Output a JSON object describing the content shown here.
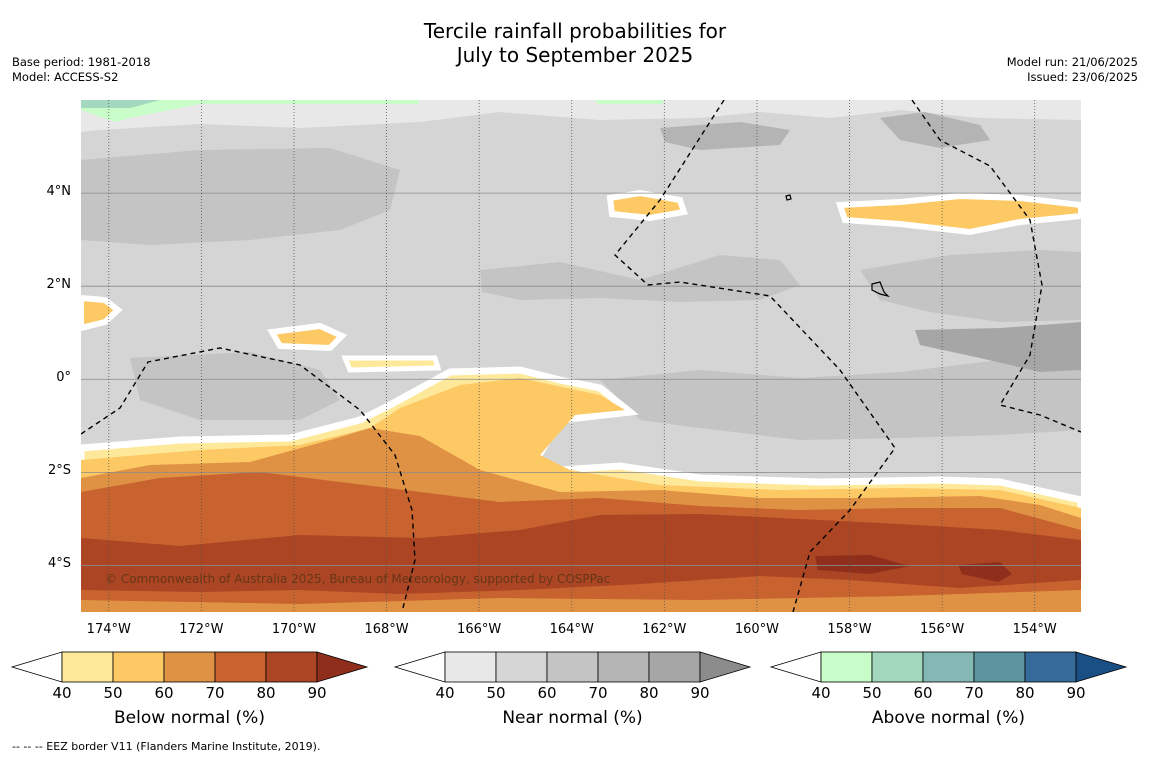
{
  "title_line1": "Tercile rainfall probabilities for",
  "title_line2": "July to September 2025",
  "meta_left": {
    "base_period": "Base period: 1981-2018",
    "model": "Model: ACCESS-S2"
  },
  "meta_right": {
    "model_run": "Model run: 21/06/2025",
    "issued": "Issued: 23/06/2025"
  },
  "copyright": "© Commonwealth of Australia 2025, Bureau of Meteorology, supported by COSPPac",
  "footer": "--  --  -- EEZ border V11 (Flanders Marine Institute, 2019).",
  "map": {
    "lon_min": -174.6,
    "lon_max": -153.0,
    "lat_min": -5.0,
    "lat_max": 6.0,
    "lat_ticks": [
      {
        "value": 4,
        "label": "4°N"
      },
      {
        "value": 2,
        "label": "2°N"
      },
      {
        "value": 0,
        "label": "0°"
      },
      {
        "value": -2,
        "label": "2°S"
      },
      {
        "value": -4,
        "label": "4°S"
      }
    ],
    "lon_ticks": [
      {
        "value": -174,
        "label": "174°W"
      },
      {
        "value": -172,
        "label": "172°W"
      },
      {
        "value": -170,
        "label": "170°W"
      },
      {
        "value": -168,
        "label": "168°W"
      },
      {
        "value": -166,
        "label": "166°W"
      },
      {
        "value": -164,
        "label": "164°W"
      },
      {
        "value": -162,
        "label": "162°W"
      },
      {
        "value": -160,
        "label": "160°W"
      },
      {
        "value": -158,
        "label": "158°W"
      },
      {
        "value": -156,
        "label": "156°W"
      },
      {
        "value": -154,
        "label": "154°W"
      }
    ],
    "background_color": "#d5d5d5"
  },
  "colorbars": [
    {
      "title": "Below normal (%)",
      "ticks": [
        "40",
        "50",
        "60",
        "70",
        "80",
        "90"
      ],
      "colors": [
        "#fee99b",
        "#fdc965",
        "#e09244",
        "#c8622e",
        "#ab4524"
      ],
      "over_color": "#8f2e1b"
    },
    {
      "title": "Near normal (%)",
      "ticks": [
        "40",
        "50",
        "60",
        "70",
        "80",
        "90"
      ],
      "colors": [
        "#e8e8e8",
        "#d5d5d5",
        "#c4c4c4",
        "#b4b4b4",
        "#a6a6a6"
      ],
      "over_color": "#8c8c8c"
    },
    {
      "title": "Above normal (%)",
      "ticks": [
        "40",
        "50",
        "60",
        "70",
        "80",
        "90"
      ],
      "colors": [
        "#c8fcc8",
        "#a4d8be",
        "#84b8b4",
        "#5c94a0",
        "#356a9a"
      ],
      "over_color": "#1a4f86"
    }
  ]
}
